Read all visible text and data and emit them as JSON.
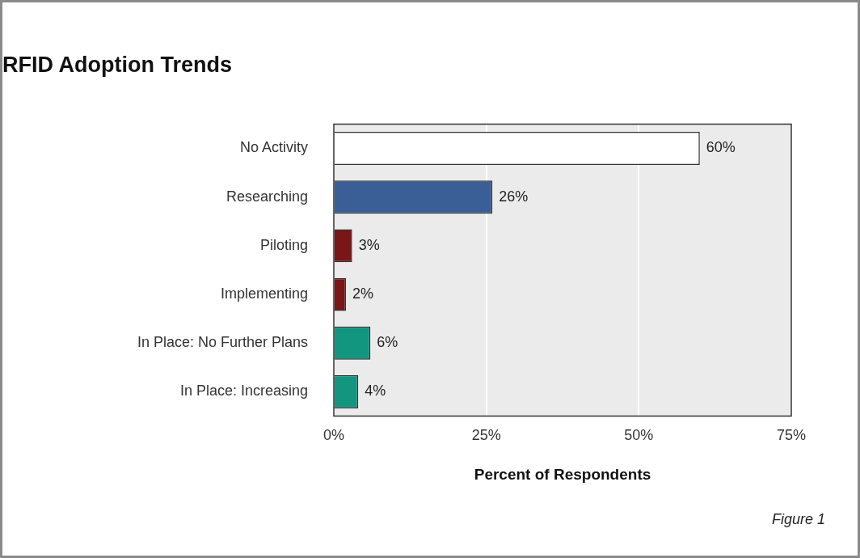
{
  "chart_data": {
    "type": "bar",
    "orientation": "horizontal",
    "title": "RFID Adoption Trends",
    "xlabel": "Percent of Respondents",
    "categories": [
      "No Activity",
      "Researching",
      "Piloting",
      "Implementing",
      "In Place: No Further Plans",
      "In Place: Increasing"
    ],
    "values": [
      60,
      26,
      3,
      2,
      6,
      4
    ],
    "colors": [
      "#ffffff",
      "#3a5f96",
      "#7a1518",
      "#7a1518",
      "#139680",
      "#139680"
    ],
    "value_labels": [
      "60%",
      "26%",
      "3%",
      "2%",
      "6%",
      "4%"
    ],
    "xlim": [
      0,
      75
    ],
    "xticks": [
      {
        "value": 0,
        "label": "0%"
      },
      {
        "value": 25,
        "label": "25%"
      },
      {
        "value": 50,
        "label": "50%"
      },
      {
        "value": 75,
        "label": "75%"
      }
    ],
    "grid": "x",
    "legend": false,
    "annotations": [
      "Figure 1"
    ]
  }
}
